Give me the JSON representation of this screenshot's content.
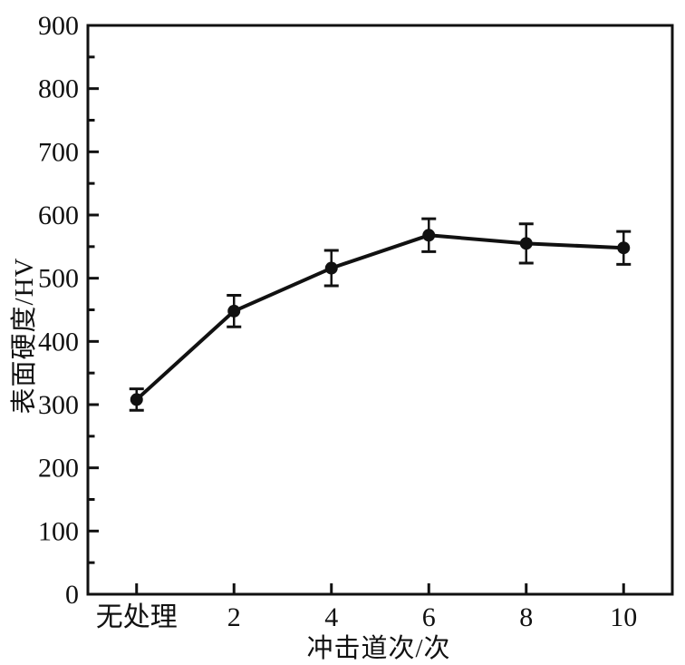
{
  "chart_data": {
    "type": "line",
    "title": "",
    "categories": [
      "无处理",
      "2",
      "4",
      "6",
      "8",
      "10"
    ],
    "series": [
      {
        "name": "表面硬度",
        "values": [
          308,
          448,
          516,
          568,
          555,
          548
        ],
        "error_bars": [
          17,
          25,
          28,
          26,
          31,
          26
        ]
      }
    ],
    "xlabel": "冲击道次/次",
    "ylabel": "表面硬度/HV",
    "ylim": [
      0,
      900
    ],
    "ytick_interval": 100,
    "yminor_interval": 50,
    "ytick_labels": [
      "0",
      "100",
      "200",
      "300",
      "400",
      "500",
      "600",
      "700",
      "800",
      "900"
    ],
    "grid": false,
    "legend_position": "none",
    "marker": "filled-circle",
    "tick_direction": "in",
    "colors": {
      "line": "#111111",
      "marker": "#111111",
      "axis": "#111111",
      "text": "#111111",
      "background": "#ffffff"
    }
  }
}
